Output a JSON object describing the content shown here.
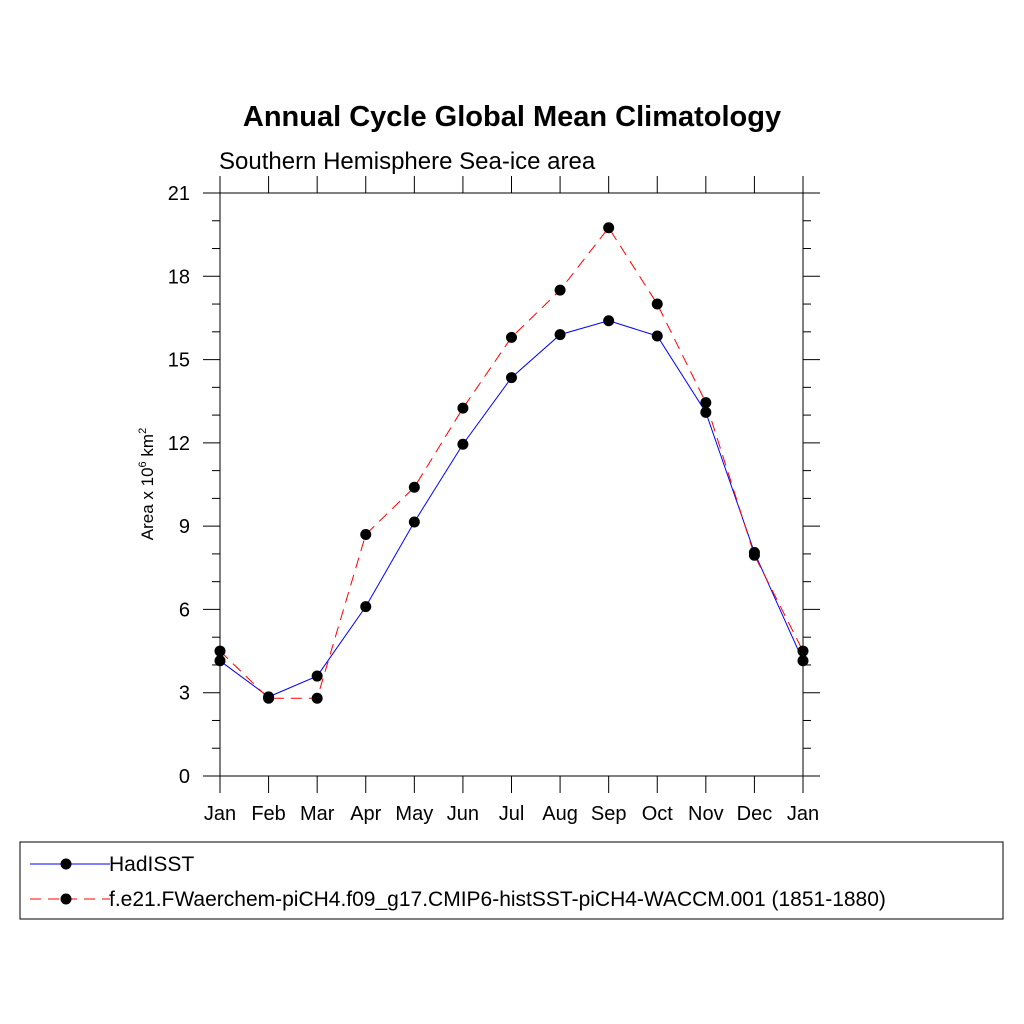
{
  "chart_data": {
    "type": "line",
    "title": "Annual Cycle Global Mean Climatology",
    "subtitle": "Southern Hemisphere Sea-ice area",
    "ylabel": {
      "prefix": "Area x 10",
      "exp1": "6",
      "mid": " km",
      "exp2": "2"
    },
    "xlabel": "",
    "categories": [
      "Jan",
      "Feb",
      "Mar",
      "Apr",
      "May",
      "Jun",
      "Jul",
      "Aug",
      "Sep",
      "Oct",
      "Nov",
      "Dec",
      "Jan"
    ],
    "ylim": [
      0,
      21
    ],
    "yticks": [
      0,
      3,
      6,
      9,
      12,
      15,
      18,
      21
    ],
    "series": [
      {
        "name": "HadISST",
        "color": "#0000ff",
        "dash": "solid",
        "values": [
          4.15,
          2.85,
          3.6,
          6.1,
          9.15,
          11.95,
          14.35,
          15.9,
          16.4,
          15.85,
          13.1,
          8.05,
          4.15
        ]
      },
      {
        "name": "f.e21.FWaerchem-piCH4.f09_g17.CMIP6-histSST-piCH4-WACCM.001 (1851-1880)",
        "color": "#ff0000",
        "dash": "dashed",
        "values": [
          4.5,
          2.8,
          2.8,
          8.7,
          10.4,
          13.25,
          15.8,
          17.5,
          19.75,
          17.0,
          13.45,
          7.95,
          4.5
        ]
      }
    ],
    "legend_position": "bottom",
    "marker": "filled-circle",
    "marker_color": "#000000"
  }
}
